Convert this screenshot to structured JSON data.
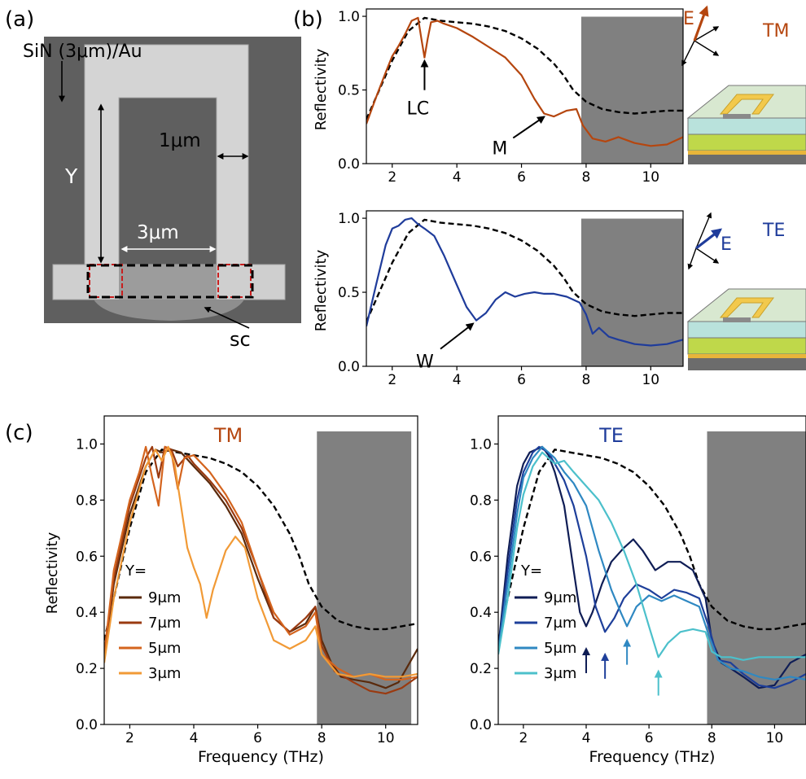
{
  "figure": {
    "panel_labels": [
      "(a)",
      "(b)",
      "(c)"
    ],
    "colors": {
      "tm": "#b5460f",
      "te": "#1f3c9b",
      "reference": "#000000",
      "shaded": "#808080",
      "tm_series": [
        "#5a2a0c",
        "#9a3a10",
        "#d4641e",
        "#f19a36"
      ],
      "te_series": [
        "#0f1d55",
        "#1e3f9a",
        "#2f88c2",
        "#4cc0cb"
      ]
    }
  },
  "sem": {
    "material_label": "SiN (3μm)/Au",
    "y_label": "Y",
    "width_label": "1μm",
    "gap_label": "3μm",
    "sc_label": "sc"
  },
  "chart_data": [
    {
      "id": "b-tm",
      "type": "line",
      "ylabel": "Reflectivity",
      "xlim": [
        1.2,
        11
      ],
      "ylim": [
        0,
        1.05
      ],
      "xticks": [
        2,
        4,
        6,
        8,
        10
      ],
      "yticks": [
        "0.0",
        "0.5",
        "1.0"
      ],
      "shaded_x": [
        7.85,
        11
      ],
      "polarization": "TM",
      "field_label": "E",
      "annotations": [
        {
          "text": "LC",
          "x": 3.0,
          "y": 0.72
        },
        {
          "text": "M",
          "x": 6.7,
          "y": 0.34
        }
      ],
      "series": [
        {
          "role": "reference",
          "x": [
            1.2,
            1.5,
            2.0,
            2.5,
            3.0,
            3.5,
            4.0,
            4.5,
            5.0,
            5.5,
            6.0,
            6.5,
            7.0,
            7.3,
            7.6,
            8.0,
            8.5,
            9.0,
            9.5,
            10.0,
            10.5,
            11.0
          ],
          "y": [
            0.3,
            0.45,
            0.7,
            0.9,
            0.99,
            0.97,
            0.96,
            0.95,
            0.93,
            0.9,
            0.85,
            0.78,
            0.68,
            0.6,
            0.5,
            0.42,
            0.37,
            0.35,
            0.34,
            0.35,
            0.36,
            0.36
          ]
        },
        {
          "role": "measured",
          "x": [
            1.2,
            1.5,
            1.8,
            2.0,
            2.2,
            2.4,
            2.6,
            2.8,
            2.9,
            3.0,
            3.1,
            3.2,
            3.4,
            3.6,
            4.0,
            4.5,
            5.0,
            5.5,
            6.0,
            6.4,
            6.7,
            7.0,
            7.4,
            7.7,
            7.9,
            8.2,
            8.6,
            9.0,
            9.5,
            10.0,
            10.5,
            11.0
          ],
          "y": [
            0.27,
            0.45,
            0.62,
            0.73,
            0.8,
            0.88,
            0.97,
            0.99,
            0.85,
            0.72,
            0.85,
            0.96,
            0.97,
            0.95,
            0.92,
            0.86,
            0.79,
            0.72,
            0.6,
            0.44,
            0.34,
            0.32,
            0.36,
            0.37,
            0.26,
            0.17,
            0.15,
            0.18,
            0.14,
            0.12,
            0.13,
            0.18
          ]
        }
      ]
    },
    {
      "id": "b-te",
      "type": "line",
      "ylabel": "Reflectivity",
      "xlim": [
        1.2,
        11
      ],
      "ylim": [
        0,
        1.05
      ],
      "xticks": [
        2,
        4,
        6,
        8,
        10
      ],
      "yticks": [
        "0.0",
        "0.5",
        "1.0"
      ],
      "shaded_x": [
        7.85,
        11
      ],
      "polarization": "TE",
      "field_label": "E",
      "annotations": [
        {
          "text": "W",
          "x": 4.5,
          "y": 0.31
        }
      ],
      "series": [
        {
          "role": "reference",
          "x": [
            1.2,
            1.5,
            2.0,
            2.5,
            3.0,
            3.5,
            4.0,
            4.5,
            5.0,
            5.5,
            6.0,
            6.5,
            7.0,
            7.3,
            7.6,
            8.0,
            8.5,
            9.0,
            9.5,
            10.0,
            10.5,
            11.0
          ],
          "y": [
            0.3,
            0.45,
            0.7,
            0.9,
            0.99,
            0.97,
            0.96,
            0.95,
            0.93,
            0.9,
            0.85,
            0.78,
            0.68,
            0.6,
            0.5,
            0.42,
            0.37,
            0.35,
            0.34,
            0.35,
            0.36,
            0.36
          ]
        },
        {
          "role": "measured",
          "x": [
            1.2,
            1.5,
            1.8,
            2.0,
            2.2,
            2.4,
            2.6,
            2.8,
            3.0,
            3.3,
            3.6,
            4.0,
            4.3,
            4.6,
            4.9,
            5.2,
            5.5,
            5.8,
            6.1,
            6.4,
            6.7,
            7.0,
            7.4,
            7.8,
            8.0,
            8.2,
            8.4,
            8.7,
            9.0,
            9.5,
            10.0,
            10.5,
            11.0
          ],
          "y": [
            0.27,
            0.55,
            0.82,
            0.93,
            0.95,
            0.99,
            1.0,
            0.96,
            0.93,
            0.88,
            0.75,
            0.55,
            0.4,
            0.31,
            0.36,
            0.45,
            0.5,
            0.47,
            0.49,
            0.5,
            0.49,
            0.49,
            0.47,
            0.43,
            0.35,
            0.22,
            0.26,
            0.2,
            0.18,
            0.15,
            0.14,
            0.15,
            0.18
          ]
        }
      ]
    },
    {
      "id": "c-tm",
      "type": "line",
      "title": "TM",
      "xlabel": "Frequency (THz)",
      "ylabel": "Reflectivity",
      "xlim": [
        1.2,
        11
      ],
      "ylim": [
        0,
        1.1
      ],
      "xticks": [
        2,
        4,
        6,
        8,
        10
      ],
      "yticks": [
        "0.0",
        "0.2",
        "0.4",
        "0.6",
        "0.8",
        "1.0"
      ],
      "shaded_x": [
        7.85,
        10.8
      ],
      "legend_title": "Y=",
      "legend_position": "lower-left",
      "series": [
        {
          "role": "reference",
          "x": [
            1.2,
            1.5,
            2.0,
            2.5,
            3.0,
            3.5,
            4.0,
            4.5,
            5.0,
            5.5,
            6.0,
            6.5,
            7.0,
            7.3,
            7.6,
            8.0,
            8.5,
            9.0,
            9.5,
            10.0,
            10.5,
            11.0
          ],
          "y": [
            0.3,
            0.45,
            0.7,
            0.9,
            0.98,
            0.97,
            0.96,
            0.95,
            0.93,
            0.9,
            0.85,
            0.78,
            0.68,
            0.6,
            0.5,
            0.42,
            0.37,
            0.35,
            0.34,
            0.34,
            0.35,
            0.36
          ]
        },
        {
          "name": "9μm",
          "x": [
            1.2,
            1.5,
            2.0,
            2.5,
            2.8,
            3.0,
            3.3,
            3.6,
            4.0,
            4.5,
            5.0,
            5.5,
            6.0,
            6.5,
            7.0,
            7.5,
            7.8,
            8.0,
            8.3,
            8.6,
            9.0,
            9.5,
            10.0,
            10.4,
            11.0
          ],
          "y": [
            0.24,
            0.5,
            0.75,
            0.92,
            0.98,
            0.97,
            0.98,
            0.97,
            0.92,
            0.86,
            0.78,
            0.68,
            0.52,
            0.38,
            0.33,
            0.36,
            0.42,
            0.3,
            0.22,
            0.17,
            0.16,
            0.15,
            0.13,
            0.15,
            0.27
          ]
        },
        {
          "name": "7μm",
          "x": [
            1.2,
            1.5,
            2.0,
            2.5,
            2.7,
            2.9,
            3.1,
            3.3,
            3.5,
            3.8,
            4.0,
            4.5,
            5.0,
            5.5,
            6.0,
            6.5,
            7.0,
            7.5,
            7.8,
            8.0,
            8.4,
            9.0,
            9.5,
            10.0,
            10.5,
            11.0
          ],
          "y": [
            0.25,
            0.52,
            0.78,
            0.95,
            0.99,
            0.88,
            0.99,
            0.98,
            0.92,
            0.96,
            0.93,
            0.87,
            0.8,
            0.7,
            0.55,
            0.38,
            0.33,
            0.38,
            0.42,
            0.28,
            0.19,
            0.15,
            0.12,
            0.11,
            0.13,
            0.17
          ]
        },
        {
          "name": "5μm",
          "x": [
            1.2,
            1.5,
            2.0,
            2.3,
            2.5,
            2.7,
            2.9,
            3.1,
            3.3,
            3.5,
            3.7,
            4.0,
            4.5,
            5.0,
            5.5,
            6.0,
            6.5,
            7.0,
            7.5,
            7.8,
            8.0,
            8.5,
            9.0,
            9.5,
            10.0,
            10.5,
            11.0
          ],
          "y": [
            0.25,
            0.55,
            0.8,
            0.9,
            0.99,
            0.88,
            0.78,
            0.99,
            0.97,
            0.84,
            0.95,
            0.96,
            0.9,
            0.82,
            0.72,
            0.55,
            0.4,
            0.32,
            0.35,
            0.4,
            0.25,
            0.2,
            0.17,
            0.18,
            0.16,
            0.16,
            0.17
          ]
        },
        {
          "name": "3μm",
          "x": [
            1.2,
            1.5,
            2.0,
            2.5,
            2.8,
            3.0,
            3.2,
            3.4,
            3.6,
            3.8,
            4.0,
            4.2,
            4.4,
            4.6,
            4.8,
            5.0,
            5.3,
            5.6,
            6.0,
            6.5,
            7.0,
            7.5,
            7.8,
            8.0,
            8.5,
            9.0,
            9.5,
            10.0,
            10.5,
            11.0
          ],
          "y": [
            0.22,
            0.45,
            0.72,
            0.92,
            0.98,
            0.94,
            0.99,
            0.93,
            0.78,
            0.63,
            0.56,
            0.5,
            0.38,
            0.48,
            0.55,
            0.62,
            0.67,
            0.63,
            0.45,
            0.3,
            0.27,
            0.3,
            0.35,
            0.25,
            0.18,
            0.17,
            0.18,
            0.17,
            0.17,
            0.18
          ]
        }
      ]
    },
    {
      "id": "c-te",
      "type": "line",
      "title": "TE",
      "xlabel": "Frequency (THz)",
      "xlim": [
        1.2,
        11
      ],
      "ylim": [
        0,
        1.1
      ],
      "xticks": [
        2,
        4,
        6,
        8,
        10
      ],
      "yticks": [
        "0.0",
        "0.2",
        "0.4",
        "0.6",
        "0.8",
        "1.0"
      ],
      "shaded_x": [
        7.85,
        11
      ],
      "legend_title": "Y=",
      "legend_position": "lower-left",
      "arrow_markers": [
        {
          "x": 4.0,
          "y": 0.27
        },
        {
          "x": 4.6,
          "y": 0.25
        },
        {
          "x": 5.3,
          "y": 0.3
        },
        {
          "x": 6.3,
          "y": 0.19
        }
      ],
      "series": [
        {
          "role": "reference",
          "x": [
            1.2,
            1.5,
            2.0,
            2.5,
            3.0,
            3.5,
            4.0,
            4.5,
            5.0,
            5.5,
            6.0,
            6.5,
            7.0,
            7.3,
            7.6,
            8.0,
            8.5,
            9.0,
            9.5,
            10.0,
            10.5,
            11.0
          ],
          "y": [
            0.3,
            0.45,
            0.7,
            0.9,
            0.98,
            0.97,
            0.96,
            0.95,
            0.93,
            0.9,
            0.85,
            0.78,
            0.68,
            0.6,
            0.5,
            0.42,
            0.37,
            0.35,
            0.34,
            0.34,
            0.35,
            0.36
          ]
        },
        {
          "name": "9μm",
          "x": [
            1.2,
            1.5,
            1.8,
            2.0,
            2.2,
            2.4,
            2.6,
            2.8,
            3.0,
            3.3,
            3.6,
            3.8,
            4.0,
            4.2,
            4.5,
            4.8,
            5.2,
            5.5,
            5.8,
            6.2,
            6.6,
            7.0,
            7.4,
            7.8,
            8.0,
            8.3,
            8.6,
            9.0,
            9.5,
            10.0,
            10.5,
            11.0
          ],
          "y": [
            0.27,
            0.6,
            0.85,
            0.93,
            0.97,
            0.98,
            0.99,
            0.96,
            0.9,
            0.78,
            0.55,
            0.4,
            0.35,
            0.4,
            0.5,
            0.58,
            0.63,
            0.66,
            0.62,
            0.55,
            0.58,
            0.58,
            0.55,
            0.45,
            0.3,
            0.22,
            0.2,
            0.17,
            0.13,
            0.14,
            0.22,
            0.25
          ]
        },
        {
          "name": "7μm",
          "x": [
            1.2,
            1.5,
            1.8,
            2.0,
            2.3,
            2.5,
            2.8,
            3.0,
            3.3,
            3.6,
            4.0,
            4.3,
            4.6,
            4.9,
            5.2,
            5.6,
            6.0,
            6.4,
            6.8,
            7.2,
            7.6,
            7.9,
            8.2,
            8.6,
            9.0,
            9.5,
            10.0,
            10.5,
            11.0
          ],
          "y": [
            0.26,
            0.55,
            0.8,
            0.9,
            0.97,
            0.99,
            0.97,
            0.93,
            0.87,
            0.78,
            0.6,
            0.42,
            0.33,
            0.38,
            0.45,
            0.5,
            0.48,
            0.45,
            0.48,
            0.47,
            0.45,
            0.35,
            0.23,
            0.22,
            0.18,
            0.14,
            0.13,
            0.15,
            0.18
          ]
        },
        {
          "name": "5μm",
          "x": [
            1.2,
            1.5,
            1.8,
            2.0,
            2.3,
            2.6,
            2.8,
            3.0,
            3.3,
            3.6,
            4.0,
            4.4,
            4.8,
            5.1,
            5.3,
            5.6,
            6.0,
            6.4,
            6.8,
            7.2,
            7.6,
            7.9,
            8.2,
            8.6,
            9.0,
            9.5,
            10.0,
            10.5,
            11.0
          ],
          "y": [
            0.26,
            0.5,
            0.75,
            0.88,
            0.95,
            0.99,
            0.97,
            0.95,
            0.9,
            0.86,
            0.78,
            0.62,
            0.48,
            0.4,
            0.35,
            0.42,
            0.46,
            0.44,
            0.46,
            0.44,
            0.42,
            0.32,
            0.23,
            0.2,
            0.19,
            0.17,
            0.16,
            0.17,
            0.16
          ]
        },
        {
          "name": "3μm",
          "x": [
            1.2,
            1.5,
            1.8,
            2.0,
            2.3,
            2.6,
            2.8,
            3.0,
            3.3,
            3.6,
            4.0,
            4.4,
            4.8,
            5.2,
            5.6,
            6.0,
            6.3,
            6.6,
            7.0,
            7.4,
            7.8,
            8.0,
            8.3,
            8.6,
            9.0,
            9.5,
            10.0,
            10.5,
            11.0
          ],
          "y": [
            0.25,
            0.45,
            0.7,
            0.82,
            0.92,
            0.97,
            0.95,
            0.93,
            0.94,
            0.9,
            0.85,
            0.8,
            0.72,
            0.62,
            0.5,
            0.35,
            0.24,
            0.29,
            0.33,
            0.34,
            0.33,
            0.26,
            0.24,
            0.24,
            0.23,
            0.24,
            0.24,
            0.24,
            0.24
          ]
        }
      ]
    }
  ]
}
